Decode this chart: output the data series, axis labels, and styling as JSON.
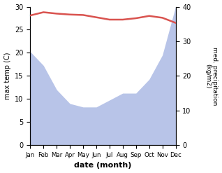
{
  "months": [
    "Jan",
    "Feb",
    "Mar",
    "Apr",
    "May",
    "Jun",
    "Jul",
    "Aug",
    "Sep",
    "Oct",
    "Nov",
    "Dec"
  ],
  "month_x": [
    0,
    1,
    2,
    3,
    4,
    5,
    6,
    7,
    8,
    9,
    10,
    11
  ],
  "temp": [
    28.1,
    28.8,
    28.5,
    28.3,
    28.2,
    27.7,
    27.2,
    27.2,
    27.5,
    28.0,
    27.6,
    26.5
  ],
  "precip": [
    27,
    23,
    16,
    12,
    11,
    11,
    13,
    15,
    15,
    19,
    26,
    40
  ],
  "temp_color": "#d9534f",
  "precip_fill_color": "#b8c4e8",
  "temp_lw": 1.8,
  "ylim_temp": [
    0,
    30
  ],
  "ylim_precip": [
    0,
    40
  ],
  "yticks_temp": [
    0,
    5,
    10,
    15,
    20,
    25,
    30
  ],
  "yticks_precip": [
    0,
    10,
    20,
    30,
    40
  ],
  "xlabel": "date (month)",
  "ylabel_left": "max temp (C)",
  "ylabel_right": "med. precipitation\n(kg/m2)",
  "bg_color": "#ffffff"
}
